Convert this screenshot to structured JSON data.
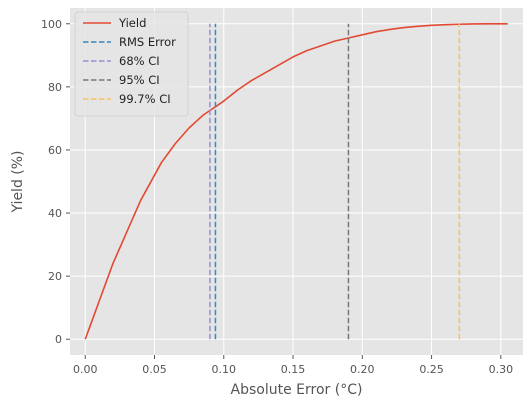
{
  "chart_data": {
    "type": "line",
    "title": "",
    "xlabel": "Absolute Error (°C)",
    "ylabel": "Yield (%)",
    "xlim": [
      -0.011,
      0.316
    ],
    "ylim": [
      -5,
      105
    ],
    "xticks": [
      0.0,
      0.05,
      0.1,
      0.15,
      0.2,
      0.25,
      0.3
    ],
    "xtick_labels": [
      "0.00",
      "0.05",
      "0.10",
      "0.15",
      "0.20",
      "0.25",
      "0.30"
    ],
    "yticks": [
      0,
      20,
      40,
      60,
      80,
      100
    ],
    "ytick_labels": [
      "0",
      "20",
      "40",
      "60",
      "80",
      "100"
    ],
    "grid": true,
    "legend_position": "top-left",
    "series": [
      {
        "name": "Yield",
        "color": "#E24A33",
        "style": "solid",
        "x": [
          0.0,
          0.005,
          0.01,
          0.015,
          0.02,
          0.025,
          0.03,
          0.035,
          0.04,
          0.045,
          0.05,
          0.055,
          0.06,
          0.065,
          0.07,
          0.075,
          0.08,
          0.085,
          0.09,
          0.095,
          0.1,
          0.11,
          0.12,
          0.13,
          0.14,
          0.15,
          0.16,
          0.17,
          0.18,
          0.19,
          0.2,
          0.21,
          0.22,
          0.23,
          0.24,
          0.25,
          0.26,
          0.27,
          0.28,
          0.29,
          0.3,
          0.305
        ],
        "y": [
          0,
          6,
          12,
          18,
          24,
          29,
          34,
          39,
          44,
          48,
          52,
          56,
          59,
          62,
          64.5,
          67,
          69,
          71,
          72.5,
          74,
          75.5,
          79,
          82,
          84.5,
          87,
          89.5,
          91.5,
          93,
          94.5,
          95.5,
          96.5,
          97.5,
          98.2,
          98.8,
          99.2,
          99.5,
          99.7,
          99.85,
          99.95,
          100,
          100,
          100
        ]
      },
      {
        "name": "RMS Error",
        "color": "#348ABD",
        "style": "dashed",
        "x": [
          0.094,
          0.094
        ],
        "y": [
          0,
          100
        ]
      },
      {
        "name": "68% CI",
        "color": "#988ED5",
        "style": "dashed",
        "x": [
          0.09,
          0.09
        ],
        "y": [
          0,
          100
        ]
      },
      {
        "name": "95% CI",
        "color": "#777777",
        "style": "dashed",
        "x": [
          0.19,
          0.19
        ],
        "y": [
          0,
          100
        ]
      },
      {
        "name": "99.7% CI",
        "color": "#FBC15E",
        "style": "dashed",
        "x": [
          0.27,
          0.27
        ],
        "y": [
          0,
          100
        ]
      }
    ]
  }
}
